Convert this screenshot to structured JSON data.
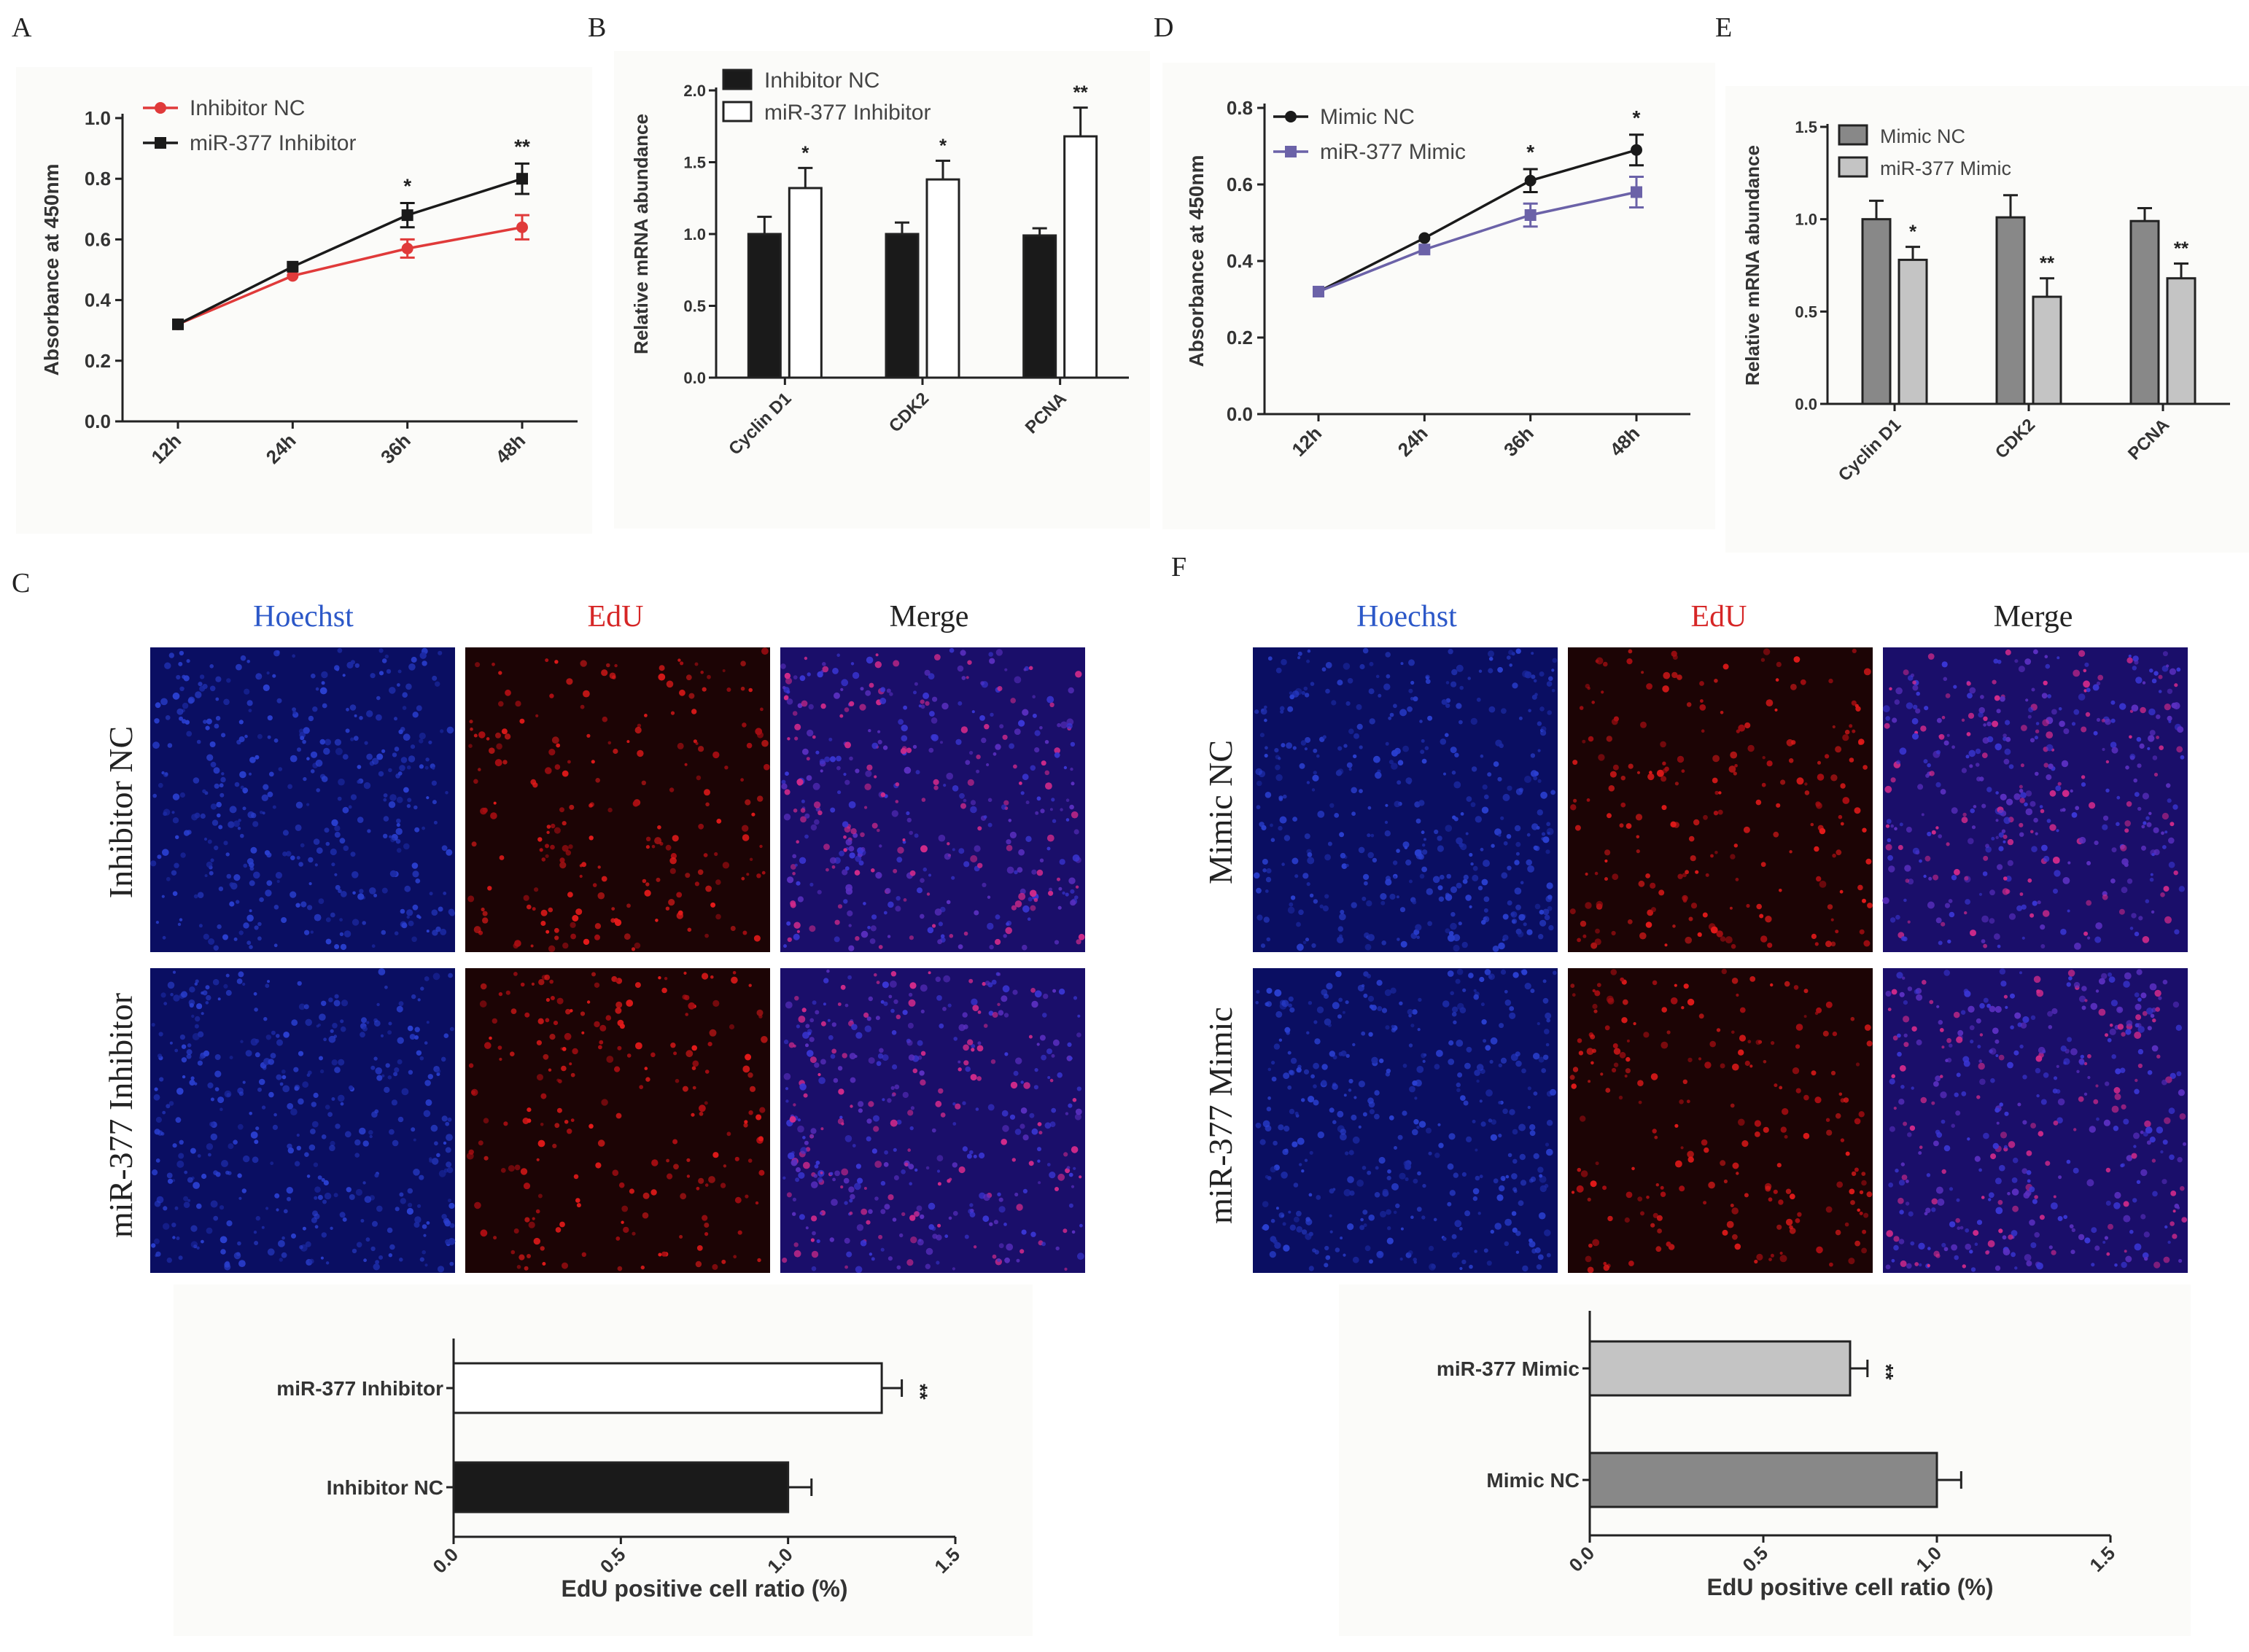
{
  "panels": {
    "A": "A",
    "B": "B",
    "C": "C",
    "D": "D",
    "E": "E",
    "F": "F"
  },
  "colors": {
    "inhibitor_nc_line": "#e03a3a",
    "inhibitor_line": "#1a1a1a",
    "mimic_nc_line": "#1a1a1a",
    "mimic_line": "#6b62a8",
    "bar_black": "#1a1a1a",
    "bar_white": "#ffffff",
    "bar_dark_gray": "#888888",
    "bar_light_gray": "#c4c4c4",
    "hoechst": "#1f4fc8",
    "edu": "#d42020"
  },
  "microscopy": {
    "C": {
      "columns": [
        "Hoechst",
        "EdU",
        "Merge"
      ],
      "rows": [
        "Inhibitor NC",
        "miR-377 Inhibitor"
      ]
    },
    "F": {
      "columns": [
        "Hoechst",
        "EdU",
        "Merge"
      ],
      "rows": [
        "Mimic NC",
        "miR-377 Mimic"
      ]
    }
  },
  "chart_data": [
    {
      "id": "A",
      "type": "line",
      "categories": [
        "12h",
        "24h",
        "36h",
        "48h"
      ],
      "ylabel": "Absorbance at 450nm",
      "xlabel": "",
      "ylim": [
        0,
        1.0
      ],
      "yticks": [
        "0.0",
        "0.2",
        "0.4",
        "0.6",
        "0.8",
        "1.0"
      ],
      "legend_position": "top-left",
      "series": [
        {
          "name": "Inhibitor NC",
          "color": "#e03a3a",
          "marker": "circle",
          "values": [
            0.32,
            0.48,
            0.57,
            0.64
          ],
          "errors": [
            0.01,
            0.01,
            0.03,
            0.04
          ]
        },
        {
          "name": "miR-377 Inhibitor",
          "color": "#1a1a1a",
          "marker": "square",
          "values": [
            0.32,
            0.51,
            0.68,
            0.8
          ],
          "errors": [
            0.01,
            0.01,
            0.04,
            0.05
          ]
        }
      ],
      "significance": [
        {
          "category": "36h",
          "label": "*"
        },
        {
          "category": "48h",
          "label": "**"
        }
      ]
    },
    {
      "id": "B",
      "type": "bar",
      "categories": [
        "Cyclin D1",
        "CDK2",
        "PCNA"
      ],
      "ylabel": "Relative mRNA abundance",
      "xlabel": "",
      "ylim": [
        0,
        2.0
      ],
      "yticks": [
        "0.0",
        "0.5",
        "1.0",
        "1.5",
        "2.0"
      ],
      "legend_position": "top-left",
      "series": [
        {
          "name": "Inhibitor NC",
          "fill": "#1a1a1a",
          "values": [
            1.0,
            1.0,
            0.99
          ],
          "errors": [
            0.12,
            0.08,
            0.05
          ]
        },
        {
          "name": "miR-377 Inhibitor",
          "fill": "#ffffff",
          "values": [
            1.32,
            1.38,
            1.68
          ],
          "errors": [
            0.14,
            0.13,
            0.2
          ]
        }
      ],
      "significance": [
        "*",
        "*",
        "**"
      ]
    },
    {
      "id": "D",
      "type": "line",
      "categories": [
        "12h",
        "24h",
        "36h",
        "48h"
      ],
      "ylabel": "Absorbance at 450nm",
      "xlabel": "",
      "ylim": [
        0,
        0.8
      ],
      "yticks": [
        "0.0",
        "0.2",
        "0.4",
        "0.6",
        "0.8"
      ],
      "legend_position": "top-left",
      "series": [
        {
          "name": "Mimic NC",
          "color": "#1a1a1a",
          "marker": "circle",
          "values": [
            0.32,
            0.46,
            0.61,
            0.69
          ],
          "errors": [
            0.01,
            0.01,
            0.03,
            0.04
          ]
        },
        {
          "name": "miR-377 Mimic",
          "color": "#6b62a8",
          "marker": "square",
          "values": [
            0.32,
            0.43,
            0.52,
            0.58
          ],
          "errors": [
            0.01,
            0.01,
            0.03,
            0.04
          ]
        }
      ],
      "significance": [
        {
          "category": "36h",
          "label": "*"
        },
        {
          "category": "48h",
          "label": "*"
        }
      ]
    },
    {
      "id": "E",
      "type": "bar",
      "categories": [
        "Cyclin D1",
        "CDK2",
        "PCNA"
      ],
      "ylabel": "Relative mRNA abundance",
      "xlabel": "",
      "ylim": [
        0,
        1.5
      ],
      "yticks": [
        "0.0",
        "0.5",
        "1.0",
        "1.5"
      ],
      "legend_position": "top-left",
      "series": [
        {
          "name": "Mimic NC",
          "fill": "#888888",
          "values": [
            1.0,
            1.01,
            0.99
          ],
          "errors": [
            0.1,
            0.12,
            0.07
          ]
        },
        {
          "name": "miR-377 Mimic",
          "fill": "#c4c4c4",
          "values": [
            0.78,
            0.58,
            0.68
          ],
          "errors": [
            0.07,
            0.1,
            0.08
          ]
        }
      ],
      "significance": [
        "*",
        "**",
        "**"
      ]
    },
    {
      "id": "C-bar",
      "type": "bar",
      "orientation": "horizontal",
      "categories": [
        "miR-377 Inhibitor",
        "Inhibitor NC"
      ],
      "xlabel": "EdU positive cell ratio (%)",
      "xlim": [
        0,
        1.5
      ],
      "xticks": [
        "0.0",
        "0.5",
        "1.0",
        "1.5"
      ],
      "values": [
        1.28,
        1.0
      ],
      "errors": [
        0.06,
        0.07
      ],
      "fills": [
        "#ffffff",
        "#1a1a1a"
      ],
      "significance": [
        "**",
        ""
      ]
    },
    {
      "id": "F-bar",
      "type": "bar",
      "orientation": "horizontal",
      "categories": [
        "miR-377 Mimic",
        "Mimic NC"
      ],
      "xlabel": "EdU positive cell ratio (%)",
      "xlim": [
        0,
        1.5
      ],
      "xticks": [
        "0.0",
        "0.5",
        "1.0",
        "1.5"
      ],
      "values": [
        0.75,
        1.0
      ],
      "errors": [
        0.05,
        0.07
      ],
      "fills": [
        "#c4c4c4",
        "#888888"
      ],
      "significance": [
        "**",
        ""
      ]
    }
  ]
}
